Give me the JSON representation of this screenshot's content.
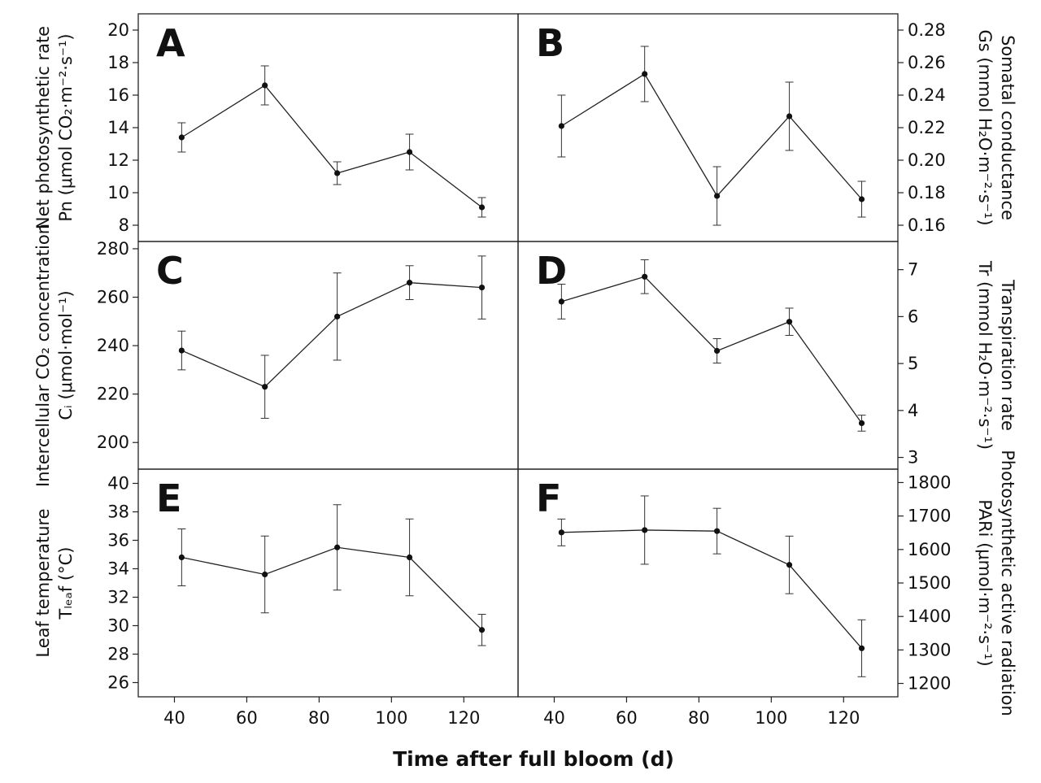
{
  "figure": {
    "xlabel": "Time after full bloom (d)"
  },
  "ylabels": {
    "left_top": {
      "line1": "Net photosynthetic rate",
      "line2": "Pn (μmol CO₂·m⁻²·s⁻¹)"
    },
    "left_middle": {
      "line1": "Intercellular CO₂ concentration",
      "line2": "Cᵢ (μmol·mol⁻¹)"
    },
    "left_bottom": {
      "line1": "Leaf temperature",
      "line2": "Tₗₑₐf (°C)"
    },
    "right_top": {
      "line1": "Somatal conductance",
      "line2": "Gs (mmol H₂O·m⁻²·s⁻¹)"
    },
    "right_middle": {
      "line1": "Transpiration rate",
      "line2": "Tr (mmol H₂O·m⁻²·s⁻¹)"
    },
    "right_bottom": {
      "line1": "Photosynthetic active radiation",
      "line2": "PARi (μmol·m⁻²·s⁻¹)"
    }
  },
  "chart_data": [
    {
      "panel": "A",
      "type": "line",
      "x": [
        42,
        65,
        85,
        105,
        125
      ],
      "y": [
        13.4,
        16.6,
        11.2,
        12.5,
        9.1
      ],
      "err": [
        0.9,
        1.2,
        0.7,
        1.1,
        0.6
      ],
      "xlim": [
        30,
        135
      ],
      "ylim": [
        7,
        21
      ],
      "xticks": [
        40,
        60,
        80,
        100,
        120
      ],
      "yticks": [
        8,
        10,
        12,
        14,
        16,
        18,
        20
      ],
      "ytick_labels": [
        "8",
        "10",
        "12",
        "14",
        "16",
        "18",
        "20"
      ],
      "yaxis_side": "left"
    },
    {
      "panel": "B",
      "type": "line",
      "x": [
        42,
        65,
        85,
        105,
        125
      ],
      "y": [
        0.221,
        0.253,
        0.178,
        0.227,
        0.176
      ],
      "err": [
        0.019,
        0.017,
        0.018,
        0.021,
        0.011
      ],
      "xlim": [
        30,
        135
      ],
      "ylim": [
        0.15,
        0.29
      ],
      "xticks": [
        40,
        60,
        80,
        100,
        120
      ],
      "yticks": [
        0.16,
        0.18,
        0.2,
        0.22,
        0.24,
        0.26,
        0.28
      ],
      "ytick_labels": [
        "0.16",
        "0.18",
        "0.20",
        "0.22",
        "0.24",
        "0.26",
        "0.28"
      ],
      "yaxis_side": "right"
    },
    {
      "panel": "C",
      "type": "line",
      "x": [
        42,
        65,
        85,
        105,
        125
      ],
      "y": [
        238,
        223,
        252,
        266,
        264
      ],
      "err": [
        8,
        13,
        18,
        7,
        13
      ],
      "xlim": [
        30,
        135
      ],
      "ylim": [
        189,
        283
      ],
      "xticks": [
        40,
        60,
        80,
        100,
        120
      ],
      "yticks": [
        200,
        220,
        240,
        260,
        280
      ],
      "ytick_labels": [
        "200",
        "220",
        "240",
        "260",
        "280"
      ],
      "yaxis_side": "left"
    },
    {
      "panel": "D",
      "type": "line",
      "x": [
        42,
        65,
        85,
        105,
        125
      ],
      "y": [
        6.32,
        6.85,
        5.27,
        5.89,
        3.73
      ],
      "err": [
        0.37,
        0.36,
        0.26,
        0.29,
        0.17
      ],
      "xlim": [
        30,
        135
      ],
      "ylim": [
        2.75,
        7.6
      ],
      "xticks": [
        40,
        60,
        80,
        100,
        120
      ],
      "yticks": [
        3,
        4,
        5,
        6,
        7
      ],
      "ytick_labels": [
        "3",
        "4",
        "5",
        "6",
        "7"
      ],
      "yaxis_side": "right"
    },
    {
      "panel": "E",
      "type": "line",
      "x": [
        42,
        65,
        85,
        105,
        125
      ],
      "y": [
        34.8,
        33.6,
        35.5,
        34.8,
        29.7
      ],
      "err": [
        2.0,
        2.7,
        3.0,
        2.7,
        1.1
      ],
      "xlim": [
        30,
        135
      ],
      "ylim": [
        25,
        41
      ],
      "xticks": [
        40,
        60,
        80,
        100,
        120
      ],
      "yticks": [
        26,
        28,
        30,
        32,
        34,
        36,
        38,
        40
      ],
      "ytick_labels": [
        "26",
        "28",
        "30",
        "32",
        "34",
        "36",
        "38",
        "40"
      ],
      "yaxis_side": "left"
    },
    {
      "panel": "F",
      "type": "line",
      "x": [
        42,
        65,
        85,
        105,
        125
      ],
      "y": [
        1651,
        1658,
        1655,
        1554,
        1305
      ],
      "err": [
        40,
        102,
        68,
        86,
        85
      ],
      "xlim": [
        30,
        135
      ],
      "ylim": [
        1160,
        1840
      ],
      "xticks": [
        40,
        60,
        80,
        100,
        120
      ],
      "yticks": [
        1200,
        1300,
        1400,
        1500,
        1600,
        1700,
        1800
      ],
      "ytick_labels": [
        "1200",
        "1300",
        "1400",
        "1500",
        "1600",
        "1700",
        "1800"
      ],
      "yaxis_side": "right"
    }
  ]
}
